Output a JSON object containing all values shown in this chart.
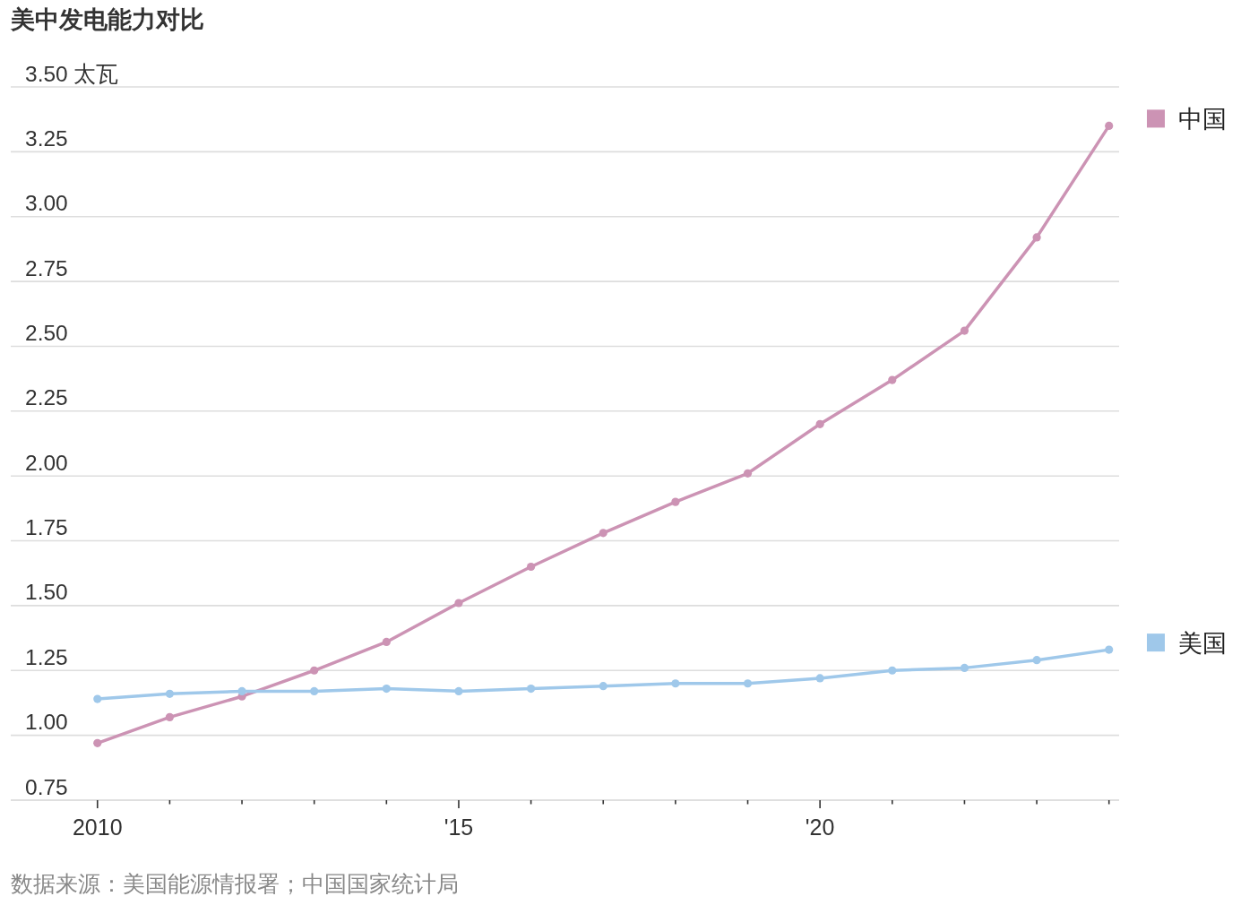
{
  "chart_data": {
    "type": "line",
    "title": "美中发电能力对比",
    "x": [
      2010,
      2011,
      2012,
      2013,
      2014,
      2015,
      2016,
      2017,
      2018,
      2019,
      2020,
      2021,
      2022,
      2023,
      2024
    ],
    "series": [
      {
        "name": "中国",
        "color": "#cc93b4",
        "values": [
          0.97,
          1.07,
          1.15,
          1.25,
          1.36,
          1.51,
          1.65,
          1.78,
          1.9,
          2.01,
          2.2,
          2.37,
          2.56,
          2.92,
          3.35
        ]
      },
      {
        "name": "美国",
        "color": "#9fc8ea",
        "values": [
          1.14,
          1.16,
          1.17,
          1.17,
          1.18,
          1.17,
          1.18,
          1.19,
          1.2,
          1.2,
          1.22,
          1.25,
          1.26,
          1.29,
          1.33
        ]
      }
    ],
    "xlim": [
      2008.8,
      2024.14
    ],
    "xticks": [
      2010,
      {
        "value": 2011,
        "label": null
      },
      {
        "value": 2012,
        "label": null
      },
      {
        "value": 2013,
        "label": null
      },
      {
        "value": 2014,
        "label": null
      },
      {
        "value": 2015,
        "label": "'15"
      },
      {
        "value": 2016,
        "label": null
      },
      {
        "value": 2017,
        "label": null
      },
      {
        "value": 2018,
        "label": null
      },
      {
        "value": 2019,
        "label": null
      },
      {
        "value": 2020,
        "label": "'20"
      },
      {
        "value": 2021,
        "label": null
      },
      {
        "value": 2022,
        "label": null
      },
      {
        "value": 2023,
        "label": null
      },
      {
        "value": 2024,
        "label": null
      }
    ],
    "ylim": [
      0.75,
      3.5
    ],
    "yticks": [
      {
        "value": 0.75,
        "label": "0.75"
      },
      {
        "value": 1.0,
        "label": "1.00"
      },
      {
        "value": 1.25,
        "label": "1.25"
      },
      {
        "value": 1.5,
        "label": "1.50"
      },
      {
        "value": 1.75,
        "label": "1.75"
      },
      {
        "value": 2.0,
        "label": "2.00"
      },
      {
        "value": 2.25,
        "label": "2.25"
      },
      {
        "value": 2.5,
        "label": "2.50"
      },
      {
        "value": 2.75,
        "label": "2.75"
      },
      {
        "value": 3.0,
        "label": "3.00"
      },
      {
        "value": 3.25,
        "label": "3.25"
      },
      {
        "value": 3.5,
        "label": "3.50 太瓦"
      }
    ],
    "grid": "y",
    "marker": "circle",
    "legend": "right",
    "annotations": [
      "数据来源：美国能源情报署；中国国家统计局"
    ]
  }
}
